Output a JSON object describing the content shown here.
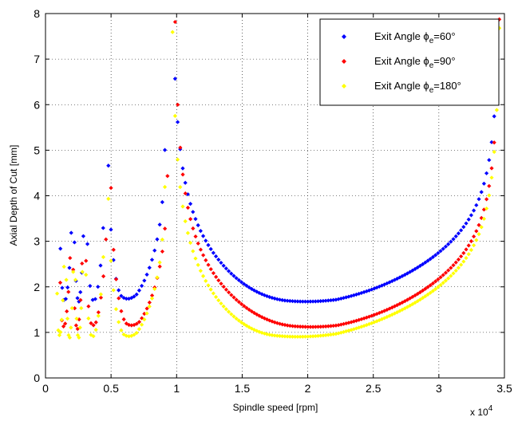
{
  "chart_data": {
    "type": "scatter",
    "title": "",
    "xlabel": "Spindle speed [rpm]",
    "ylabel": "Axial Depth of Cut [mm]",
    "x_multiplier": "x 10",
    "x_multiplier_exponent": "4",
    "xlim": [
      0,
      35000
    ],
    "ylim": [
      0,
      8
    ],
    "xticks": [
      0,
      5000,
      10000,
      15000,
      20000,
      25000,
      30000,
      35000
    ],
    "xtick_labels": [
      "0",
      "0.5",
      "1",
      "1.5",
      "2",
      "2.5",
      "3",
      "3.5"
    ],
    "yticks": [
      0,
      1,
      2,
      3,
      4,
      5,
      6,
      7,
      8
    ],
    "ytick_labels": [
      "0",
      "1",
      "2",
      "3",
      "4",
      "5",
      "6",
      "7",
      "8"
    ],
    "grid": true,
    "grid_style": "dotted",
    "legend_position": "top-right",
    "series": [
      {
        "name": "Exit Angle ϕe=60°",
        "legend_prefix": "Exit Angle ϕ",
        "legend_subscript": "e",
        "legend_suffix": "=60°",
        "color": "#0000ff",
        "lobes": [
          {
            "x_start": 1000,
            "x_end": 2100,
            "x_min": 1400,
            "y_min": 1.5,
            "shape": 0.9
          },
          {
            "x_start": 2100,
            "x_end": 3000,
            "x_min": 2500,
            "y_min": 1.5,
            "shape": 0.9
          },
          {
            "x_start": 3000,
            "x_end": 4600,
            "x_min": 3600,
            "y_min": 1.5,
            "shape": 1.0
          },
          {
            "x_start": 4600,
            "x_end": 9300,
            "x_min": 5800,
            "y_min": 1.48,
            "shape": 1.0
          },
          {
            "x_start": 9300,
            "x_end": 35000,
            "x_min": 18500,
            "y_min": 1.47,
            "shape": 1.0
          }
        ]
      },
      {
        "name": "Exit Angle ϕe=90°",
        "legend_prefix": "Exit Angle ϕ",
        "legend_subscript": "e",
        "legend_suffix": "=90°",
        "color": "#ff0000",
        "lobes": [
          {
            "x_start": 1000,
            "x_end": 2000,
            "x_min": 1300,
            "y_min": 0.9,
            "shape": 0.9
          },
          {
            "x_start": 2000,
            "x_end": 2900,
            "x_min": 2400,
            "y_min": 0.9,
            "shape": 0.9
          },
          {
            "x_start": 2900,
            "x_end": 4800,
            "x_min": 3500,
            "y_min": 0.93,
            "shape": 1.0
          },
          {
            "x_start": 4800,
            "x_end": 9500,
            "x_min": 6200,
            "y_min": 0.92,
            "shape": 1.0
          },
          {
            "x_start": 9500,
            "x_end": 35000,
            "x_min": 19000,
            "y_min": 0.92,
            "shape": 1.0
          }
        ]
      },
      {
        "name": "Exit Angle ϕe=180°",
        "legend_prefix": "Exit Angle ϕ",
        "legend_subscript": "e",
        "legend_suffix": "=180°",
        "color": "#ffff00",
        "lobes": [
          {
            "x_start": 800,
            "x_end": 1500,
            "x_min": 1000,
            "y_min": 0.7,
            "shape": 0.9
          },
          {
            "x_start": 1500,
            "x_end": 2200,
            "x_min": 1800,
            "y_min": 0.7,
            "shape": 0.9
          },
          {
            "x_start": 2200,
            "x_end": 2900,
            "x_min": 2500,
            "y_min": 0.7,
            "shape": 0.9
          },
          {
            "x_start": 2900,
            "x_end": 4600,
            "x_min": 3500,
            "y_min": 0.7,
            "shape": 1.0
          },
          {
            "x_start": 4600,
            "x_end": 9300,
            "x_min": 6000,
            "y_min": 0.68,
            "shape": 1.0
          },
          {
            "x_start": 9300,
            "x_end": 35000,
            "x_min": 17500,
            "y_min": 0.68,
            "shape": 1.0
          }
        ]
      }
    ]
  }
}
